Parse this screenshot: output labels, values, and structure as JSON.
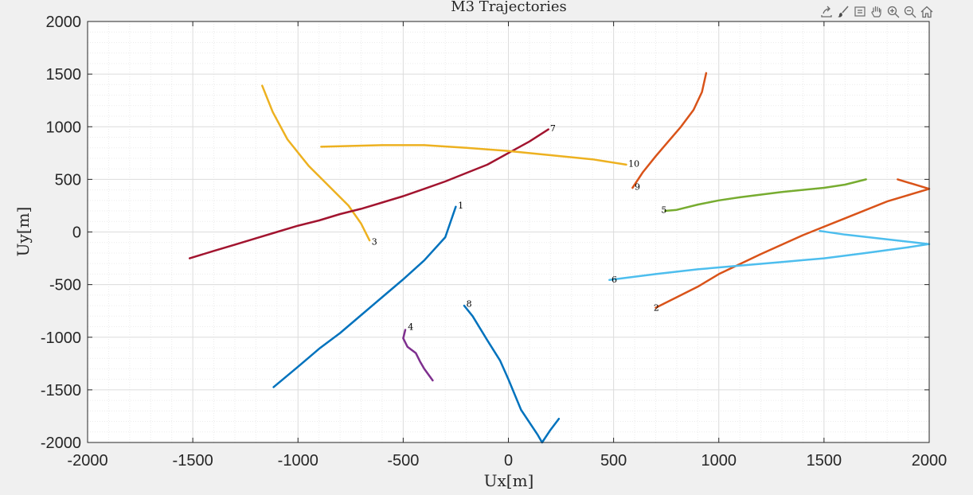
{
  "toolbar": {
    "icons": [
      "export-icon",
      "brush-icon",
      "datatip-icon",
      "pan-icon",
      "zoom-in-icon",
      "zoom-out-icon",
      "home-icon"
    ]
  },
  "chart_data": {
    "type": "line",
    "title": "M3 Trajectories",
    "xlabel": "Ux[m]",
    "ylabel": "Uy[m]",
    "xlim": [
      -2000,
      2000
    ],
    "ylim": [
      -2000,
      2000
    ],
    "xticks": [
      "-2000",
      "-1500",
      "-1000",
      "-500",
      "0",
      "500",
      "1000",
      "1500",
      "2000"
    ],
    "yticks": [
      "2000",
      "1500",
      "1000",
      "500",
      "0",
      "-500",
      "-1000",
      "-1500",
      "-2000"
    ],
    "grid": true,
    "minor_grid": true,
    "series": [
      {
        "label": "1",
        "color": "#0072BD",
        "x": [
          -1116,
          -1000,
          -900,
          -800,
          -700,
          -600,
          -500,
          -400,
          -300,
          -250
        ],
        "y": [
          -1474,
          -1280,
          -1110,
          -960,
          -790,
          -620,
          -450,
          -270,
          -50,
          240
        ],
        "label_at": [
          -240,
          255
        ]
      },
      {
        "label": "2",
        "color": "#D95319",
        "x": [
          700,
          800,
          900,
          1000,
          1200,
          1400,
          1600,
          1800,
          2000,
          1850
        ],
        "y": [
          -720,
          -620,
          -520,
          -400,
          -210,
          -30,
          130,
          290,
          410,
          500
        ],
        "label_at": [
          690,
          -720
        ]
      },
      {
        "label": "3",
        "color": "#EDB120",
        "x": [
          -660,
          -700,
          -760,
          -850,
          -950,
          -1050,
          -1120,
          -1170
        ],
        "y": [
          -80,
          80,
          250,
          430,
          630,
          880,
          1140,
          1390
        ],
        "label_at": [
          -650,
          -90
        ]
      },
      {
        "label": "4",
        "color": "#7E2F8E",
        "x": [
          -490,
          -500,
          -480,
          -440,
          -420,
          -400,
          -360
        ],
        "y": [
          -930,
          -1010,
          -1090,
          -1150,
          -1230,
          -1300,
          -1410
        ],
        "label_at": [
          -478,
          -900
        ]
      },
      {
        "label": "5",
        "color": "#77AC30",
        "x": [
          745,
          800,
          900,
          1000,
          1100,
          1300,
          1500,
          1600,
          1700
        ],
        "y": [
          200,
          210,
          260,
          300,
          330,
          380,
          420,
          450,
          500
        ],
        "label_at": [
          726,
          210
        ]
      },
      {
        "label": "6",
        "color": "#4DBEEE",
        "x": [
          480,
          700,
          900,
          1100,
          1300,
          1500,
          1700,
          1900,
          2000,
          1800,
          1600,
          1480
        ],
        "y": [
          -455,
          -400,
          -355,
          -320,
          -285,
          -250,
          -200,
          -145,
          -115,
          -70,
          -25,
          10
        ],
        "label_at": [
          490,
          -450
        ]
      },
      {
        "label": "7",
        "color": "#A2142F",
        "x": [
          -1515,
          -1400,
          -1300,
          -1200,
          -1100,
          -1000,
          -900,
          -800,
          -700,
          -600,
          -500,
          -400,
          -300,
          -200,
          -100,
          0,
          100,
          190
        ],
        "y": [
          -250,
          -180,
          -120,
          -60,
          0,
          60,
          110,
          170,
          220,
          280,
          340,
          410,
          480,
          560,
          640,
          750,
          860,
          975
        ],
        "label_at": [
          198,
          985
        ]
      },
      {
        "label": "8",
        "color": "#0072BD",
        "x": [
          -210,
          -170,
          -100,
          -40,
          0,
          60,
          140,
          160,
          200,
          240
        ],
        "y": [
          -700,
          -800,
          -1030,
          -1220,
          -1400,
          -1690,
          -1930,
          -2000,
          -1880,
          -1775
        ],
        "label_at": [
          -200,
          -680
        ]
      },
      {
        "label": "9",
        "color": "#D95319",
        "x": [
          590,
          640,
          700,
          760,
          820,
          880,
          920,
          940
        ],
        "y": [
          420,
          570,
          720,
          860,
          1000,
          1160,
          1330,
          1510
        ],
        "label_at": [
          600,
          430
        ]
      },
      {
        "label": "10",
        "color": "#EDB120",
        "x": [
          -890,
          -800,
          -600,
          -400,
          -200,
          0,
          200,
          400,
          560
        ],
        "y": [
          810,
          815,
          825,
          825,
          800,
          770,
          730,
          690,
          640
        ],
        "label_at": [
          570,
          650
        ]
      }
    ]
  }
}
